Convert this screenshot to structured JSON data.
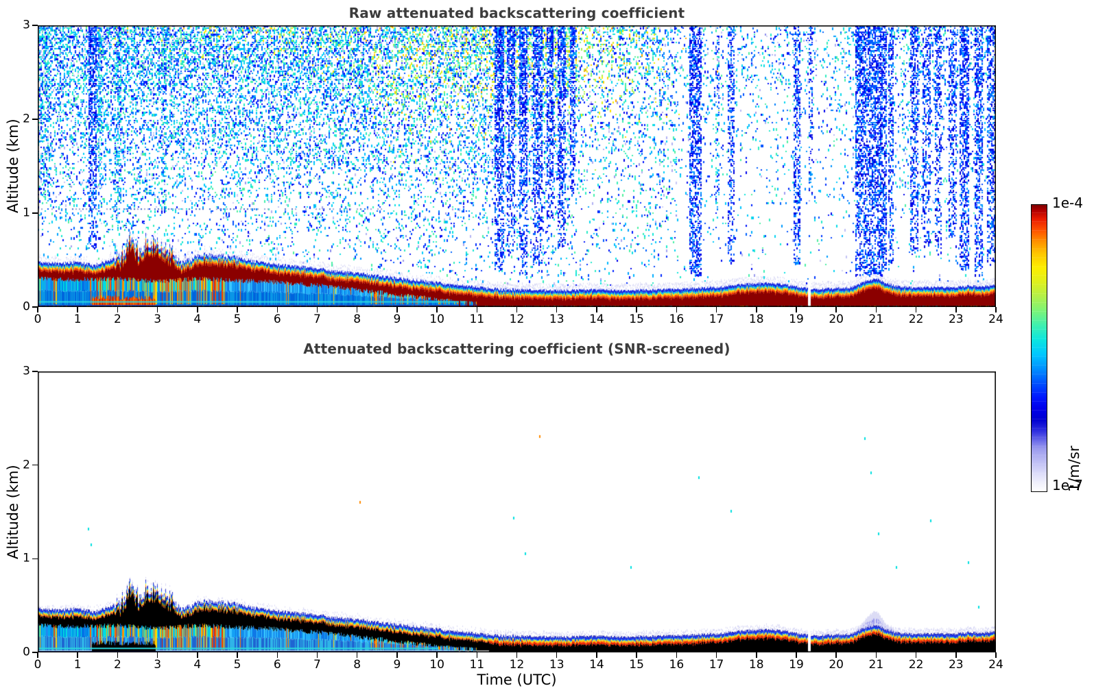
{
  "figure": {
    "title_raw": "Raw attenuated backscattering coefficient",
    "title_screened": "Attenuated backscattering coefficient (SNR-screened)",
    "xlabel": "Time (UTC)",
    "ylabel": "Altitude (km)",
    "title_color": "#3c3c3c",
    "background": "#ffffff"
  },
  "axes": {
    "x_ticks": [
      0,
      1,
      2,
      3,
      4,
      5,
      6,
      7,
      8,
      9,
      10,
      11,
      12,
      13,
      14,
      15,
      16,
      17,
      18,
      19,
      20,
      21,
      22,
      23,
      24
    ],
    "y_ticks": [
      0,
      1,
      2,
      3
    ],
    "x_range": [
      0,
      24
    ],
    "y_range_km": [
      0,
      3
    ]
  },
  "colorbar": {
    "max_label": "1e-4",
    "min_label": "1e-7",
    "unit": "1/m/sr",
    "gradient_stops": [
      {
        "v": 0.0,
        "color": "#ffffff"
      },
      {
        "v": 0.03,
        "color": "#f0f0fc"
      },
      {
        "v": 0.06,
        "color": "#dedefa"
      },
      {
        "v": 0.09,
        "color": "#c8c8f6"
      },
      {
        "v": 0.12,
        "color": "#b2b2f2"
      },
      {
        "v": 0.15,
        "color": "#9a9aee"
      },
      {
        "v": 0.18,
        "color": "#6666e8"
      },
      {
        "v": 0.21,
        "color": "#3030df"
      },
      {
        "v": 0.25,
        "color": "#0000d0"
      },
      {
        "v": 0.29,
        "color": "#0000ea"
      },
      {
        "v": 0.33,
        "color": "#0018ff"
      },
      {
        "v": 0.38,
        "color": "#0054ff"
      },
      {
        "v": 0.43,
        "color": "#0092ff"
      },
      {
        "v": 0.48,
        "color": "#00c8ff"
      },
      {
        "v": 0.53,
        "color": "#0ce6de"
      },
      {
        "v": 0.58,
        "color": "#40f0b0"
      },
      {
        "v": 0.63,
        "color": "#7cf478"
      },
      {
        "v": 0.68,
        "color": "#b2f04a"
      },
      {
        "v": 0.73,
        "color": "#def01e"
      },
      {
        "v": 0.78,
        "color": "#fdee00"
      },
      {
        "v": 0.83,
        "color": "#ffc600"
      },
      {
        "v": 0.87,
        "color": "#ff9400"
      },
      {
        "v": 0.91,
        "color": "#ff5400"
      },
      {
        "v": 0.95,
        "color": "#ea1c00"
      },
      {
        "v": 0.98,
        "color": "#b20000"
      },
      {
        "v": 1.0,
        "color": "#7f0000"
      }
    ]
  },
  "chart_data": [
    {
      "type": "heatmap",
      "title": "Raw attenuated backscattering coefficient",
      "xlabel": "Time (UTC)",
      "ylabel": "Altitude (km)",
      "xlim": [
        0,
        24
      ],
      "ylim": [
        0,
        3
      ],
      "colorbar": {
        "min": 1e-07,
        "max": 0.0001,
        "scale": "log",
        "unit": "1/m/sr",
        "colormap": "jet-like (white/lavender low → blue → cyan → green → yellow → red → dark red high)"
      },
      "aerosol_layer_top_km": {
        "t": [
          0,
          0.5,
          1,
          1.4,
          1.8,
          2.1,
          2.3,
          2.5,
          2.7,
          2.9,
          3.1,
          3.3,
          3.6,
          3.9,
          4.2,
          4.6,
          5,
          5.5,
          6,
          6.5,
          7,
          7.5,
          8,
          8.5,
          9,
          9.5,
          10,
          10.5,
          11,
          11.5,
          12,
          12.5,
          13,
          13.5,
          14,
          14.5,
          15,
          15.5,
          16,
          16.5,
          17,
          17.5,
          18,
          18.3,
          18.7,
          19,
          19.5,
          20,
          20.4,
          20.7,
          21,
          21.2,
          21.5,
          22,
          22.5,
          23,
          23.3,
          23.6,
          24
        ],
        "alt": [
          0.48,
          0.46,
          0.48,
          0.44,
          0.5,
          0.55,
          0.72,
          0.6,
          0.66,
          0.7,
          0.64,
          0.6,
          0.46,
          0.52,
          0.56,
          0.54,
          0.52,
          0.48,
          0.45,
          0.43,
          0.41,
          0.38,
          0.36,
          0.33,
          0.31,
          0.28,
          0.26,
          0.23,
          0.21,
          0.19,
          0.185,
          0.18,
          0.175,
          0.18,
          0.185,
          0.175,
          0.18,
          0.185,
          0.19,
          0.2,
          0.21,
          0.235,
          0.25,
          0.255,
          0.24,
          0.215,
          0.19,
          0.2,
          0.21,
          0.27,
          0.3,
          0.26,
          0.22,
          0.205,
          0.215,
          0.21,
          0.225,
          0.22,
          0.23
        ]
      },
      "strong_echo_bottom_km": {
        "t": [
          0,
          1,
          2,
          3,
          4,
          5,
          6,
          7,
          8,
          9,
          10,
          10.5,
          11,
          11.3,
          24
        ],
        "alt": [
          0.3,
          0.29,
          0.3,
          0.27,
          0.3,
          0.28,
          0.26,
          0.23,
          0.18,
          0.13,
          0.08,
          0.05,
          0.02,
          0,
          0
        ]
      },
      "noise_stripes_utc": [
        {
          "t": 0.12,
          "w": 0.18,
          "b": 1.2,
          "k": 0.22
        },
        {
          "t": 1.35,
          "w": 0.1,
          "b": 0.62,
          "k": 0.3
        },
        {
          "t": 1.55,
          "w": 0.06,
          "b": 0.9,
          "k": 0.22
        },
        {
          "t": 2.0,
          "w": 0.08,
          "b": 0.95,
          "k": 0.25
        },
        {
          "t": 3.15,
          "w": 0.06,
          "b": 1.0,
          "k": 0.2
        },
        {
          "t": 11.55,
          "w": 0.13,
          "b": 0.4,
          "k": 0.34
        },
        {
          "t": 11.85,
          "w": 0.1,
          "b": 0.55,
          "k": 0.3
        },
        {
          "t": 12.15,
          "w": 0.1,
          "b": 0.35,
          "k": 0.32
        },
        {
          "t": 12.5,
          "w": 0.12,
          "b": 0.45,
          "k": 0.3
        },
        {
          "t": 12.82,
          "w": 0.08,
          "b": 0.95,
          "k": 0.26
        },
        {
          "t": 13.1,
          "w": 0.1,
          "b": 0.6,
          "k": 0.3
        },
        {
          "t": 13.38,
          "w": 0.08,
          "b": 1.15,
          "k": 0.26
        },
        {
          "t": 16.45,
          "w": 0.16,
          "b": 0.35,
          "k": 0.5
        },
        {
          "t": 17.0,
          "w": 0.06,
          "b": 1.05,
          "k": 0.25
        },
        {
          "t": 17.35,
          "w": 0.1,
          "b": 0.5,
          "k": 0.32
        },
        {
          "t": 19.0,
          "w": 0.1,
          "b": 0.45,
          "k": 0.42
        },
        {
          "t": 19.35,
          "w": 0.06,
          "b": 1.2,
          "k": 0.3
        },
        {
          "t": 20.55,
          "w": 0.1,
          "b": 0.35,
          "k": 0.45
        },
        {
          "t": 20.75,
          "w": 0.08,
          "b": 0.3,
          "k": 0.4
        },
        {
          "t": 20.95,
          "w": 0.1,
          "b": 0.35,
          "k": 0.45
        },
        {
          "t": 21.15,
          "w": 0.1,
          "b": 0.35,
          "k": 0.5
        },
        {
          "t": 21.35,
          "w": 0.08,
          "b": 0.45,
          "k": 0.4
        },
        {
          "t": 21.95,
          "w": 0.1,
          "b": 0.55,
          "k": 0.36
        },
        {
          "t": 22.25,
          "w": 0.1,
          "b": 0.65,
          "k": 0.3
        },
        {
          "t": 22.55,
          "w": 0.08,
          "b": 0.55,
          "k": 0.32
        },
        {
          "t": 22.9,
          "w": 0.1,
          "b": 0.75,
          "k": 0.3
        },
        {
          "t": 23.2,
          "w": 0.12,
          "b": 0.4,
          "k": 0.45
        },
        {
          "t": 23.55,
          "w": 0.1,
          "b": 0.35,
          "k": 0.42
        },
        {
          "t": 23.85,
          "w": 0.1,
          "b": 0.45,
          "k": 0.38
        }
      ],
      "noise_green_enhancement": [
        {
          "t": 13,
          "ts": 2.4,
          "a": 2.75,
          "as": 0.6,
          "amp": 0.5
        },
        {
          "t": 9.6,
          "ts": 1.6,
          "a": 2.55,
          "as": 0.65,
          "amp": 0.28
        },
        {
          "t": 5.5,
          "ts": 2.5,
          "a": 3.05,
          "as": 0.35,
          "amp": 0.22
        }
      ],
      "sub_layer_zones": [
        {
          "t0": 0,
          "t1": 1.3,
          "warm_prob": 0.06,
          "cool": [
            "#00aaf0",
            "#0073e6",
            "#00dde0",
            "#1e8cf0"
          ]
        },
        {
          "t0": 1.3,
          "t1": 3.1,
          "warm_prob": 0.42,
          "cool": [
            "#00dde0",
            "#00a0ff",
            "#0f6ee0"
          ]
        },
        {
          "t0": 3.1,
          "t1": 4.7,
          "warm_prob": 0.58,
          "cool": [
            "#00dde0",
            "#18a8f0"
          ]
        },
        {
          "t0": 4.7,
          "t1": 8.3,
          "warm_prob": 0.07,
          "cool": [
            "#14a0f5",
            "#3cc8ff",
            "#0f78e6"
          ]
        },
        {
          "t0": 8.3,
          "t1": 11.35,
          "warm_prob": 0.3,
          "cool": [
            "#2fd8e8",
            "#19b4f0"
          ]
        }
      ],
      "warm_streak_colors": [
        "#ffe000",
        "#ffb400",
        "#ff6400",
        "#e62800"
      ],
      "ground_blob": {
        "t0": 1.35,
        "t1": 2.95,
        "top_km": 0.1
      },
      "artifact_dotted_line": {
        "alt_km": 1.05,
        "t0": 0,
        "t1": 8.6
      },
      "data_gap_utc": [
        19.28,
        19.35
      ]
    },
    {
      "type": "heatmap",
      "title": "Attenuated backscattering coefficient (SNR-screened)",
      "xlabel": "Time (UTC)",
      "ylabel": "Altitude (km)",
      "xlim": [
        0,
        24
      ],
      "ylim": [
        0,
        3
      ],
      "colorbar": {
        "min": 1e-07,
        "max": 0.0001,
        "scale": "log",
        "unit": "1/m/sr"
      },
      "notes": "Same aerosol layer as raw panel; background noise removed by SNR screening; saturated layer core rendered black",
      "plume": {
        "t0": 20.5,
        "t1": 21.5,
        "center": 20.95,
        "sigma": 0.28,
        "height_km": 0.13
      },
      "residual_dots": [
        {
          "t": 1.25,
          "a": 1.33,
          "c": "#00e0e0"
        },
        {
          "t": 1.33,
          "a": 1.16,
          "c": "#00e0e0"
        },
        {
          "t": 8.05,
          "a": 1.62,
          "c": "#ff8c00"
        },
        {
          "t": 11.9,
          "a": 1.45,
          "c": "#00e0e0"
        },
        {
          "t": 12.2,
          "a": 1.07,
          "c": "#00e0e0"
        },
        {
          "t": 12.55,
          "a": 2.32,
          "c": "#ff8c00"
        },
        {
          "t": 14.85,
          "a": 0.92,
          "c": "#00e0e0"
        },
        {
          "t": 16.55,
          "a": 1.88,
          "c": "#00e0e0"
        },
        {
          "t": 17.35,
          "a": 1.52,
          "c": "#00e0e0"
        },
        {
          "t": 20.7,
          "a": 2.3,
          "c": "#00e0e0"
        },
        {
          "t": 20.85,
          "a": 1.93,
          "c": "#00e0e0"
        },
        {
          "t": 21.05,
          "a": 1.28,
          "c": "#00e0e0"
        },
        {
          "t": 21.5,
          "a": 0.92,
          "c": "#00e0e0"
        },
        {
          "t": 22.35,
          "a": 1.42,
          "c": "#00e0e0"
        },
        {
          "t": 23.3,
          "a": 0.97,
          "c": "#00e0e0"
        },
        {
          "t": 23.55,
          "a": 0.5,
          "c": "#00e0e0"
        }
      ]
    }
  ]
}
